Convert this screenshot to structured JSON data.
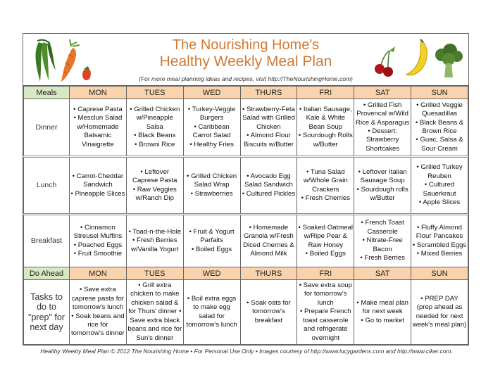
{
  "header": {
    "title_line1": "The Nourishing Home's",
    "title_line2": "Healthy Weekly Meal Plan",
    "subtitle": "(For more meal planning ideas and recipes, visit http://TheNourishingHome.com)"
  },
  "colors": {
    "title": "#d07a35",
    "day_header": "#f8d3ad",
    "label_header": "#d7e8c2"
  },
  "illustrations": [
    "green-beans",
    "carrot",
    "strawberry",
    "cherries",
    "banana",
    "broccoli"
  ],
  "meals_header": "Meals",
  "do_ahead_header": "Do Ahead",
  "days": [
    "MON",
    "TUES",
    "WED",
    "THURS",
    "FRI",
    "SAT",
    "SUN"
  ],
  "rows": [
    {
      "label": "Dinner",
      "cells": [
        [
          "• Caprese Pasta",
          "• Mesclun Salad w/Homemade Balsamic Vinaigrette"
        ],
        [
          "• Grilled Chicken w/Pineapple Salsa",
          "• Black Beans",
          "• Browni Rice"
        ],
        [
          "• Turkey-Veggie Burgers",
          "• Caribbean Carrot Salad",
          "• Healthy Fries"
        ],
        [
          "• Strawberry-Feta Salad with Grilled Chicken",
          "• Almond Flour Biscuits w/Butter"
        ],
        [
          "• Italian Sausage, Kale & White Bean Soup",
          "• Sourdough Rolls w/Butter"
        ],
        [
          "• Grilled Fish Provencal w/Wild Rice & Asparagus",
          "• Dessert: Strawberry Shortcakes"
        ],
        [
          "• Grilled Veggie Quesadillas",
          "• Black Beans & Brown Rice",
          "• Guac, Salsa & Sour Cream"
        ]
      ]
    },
    {
      "label": "Lunch",
      "cells": [
        [
          "• Carrot-Cheddar Sandwich",
          "• Pineapple Slices"
        ],
        [
          "• Leftover Caprese Pasta",
          "• Raw Veggies w/Ranch Dip"
        ],
        [
          "• Grilled Chicken Salad Wrap",
          "• Strawberries"
        ],
        [
          "• Avocado Egg Salad Sandwich",
          "• Cultured Pickles"
        ],
        [
          "• Tuna Salad w/Whole Grain Crackers",
          "• Fresh Cherries"
        ],
        [
          "• Leftover Italian Sausage Soup",
          "• Sourdough rolls w/Butter"
        ],
        [
          "• Grilled Turkey Reuben",
          "• Cultured Sauerkraut",
          "• Apple Slices"
        ]
      ]
    },
    {
      "label": "Breakfast",
      "cells": [
        [
          "• Cinnamon Streusel Muffins",
          "• Poached Eggs",
          "• Fruit Smoothie"
        ],
        [
          "• Toad-n-the-Hole",
          "• Fresh Berries w/Vanilla Yogurt"
        ],
        [
          "• Fruit & Yogurt Parfaits",
          "• Boiled Eggs"
        ],
        [
          "• Homemade Granola w/Fresh Diced Cherries & Almond Milk"
        ],
        [
          "• Soaked Oatmeal w/Ripe Pear & Raw Honey",
          "• Boiled Eggs"
        ],
        [
          "• French Toast Casserole",
          "• Nitrate-Free Bacon",
          "• Fresh Berries"
        ],
        [
          "• Fluffy Almond Flour Pancakes",
          "• Scrambled Eggs",
          "• Mixed Berries"
        ]
      ]
    }
  ],
  "tasks": {
    "label": "Tasks to do to \"prep\" for next day",
    "cells": [
      [
        "• Save extra caprese pasta for tomorrow's lunch",
        "• Soak beans and rice for tomorrow's dinner"
      ],
      [
        "• Grill extra chicken to make chicken salad & for Thurs' dinner  • Save extra black beans and rice for Sun's dinner"
      ],
      [
        "• Boil extra eggs to make egg salad for tomorrow's lunch"
      ],
      [
        "• Soak oats for tomorrow's breakfast"
      ],
      [
        "• Save extra soup for tomorrow's lunch",
        "• Prepare French toast casserole and refrigerate overnight"
      ],
      [
        "• Make meal plan for  next week",
        "• Go to market"
      ],
      [
        "• PREP DAY (prep ahead as needed for next week's meal plan)"
      ]
    ]
  },
  "footer": "Healthy Weekly Meal Plan © 2012 The Nourishing Home • For Personal Use Only • Images courtesy of http://www.lucygardens.com and http://www.ciker.com."
}
